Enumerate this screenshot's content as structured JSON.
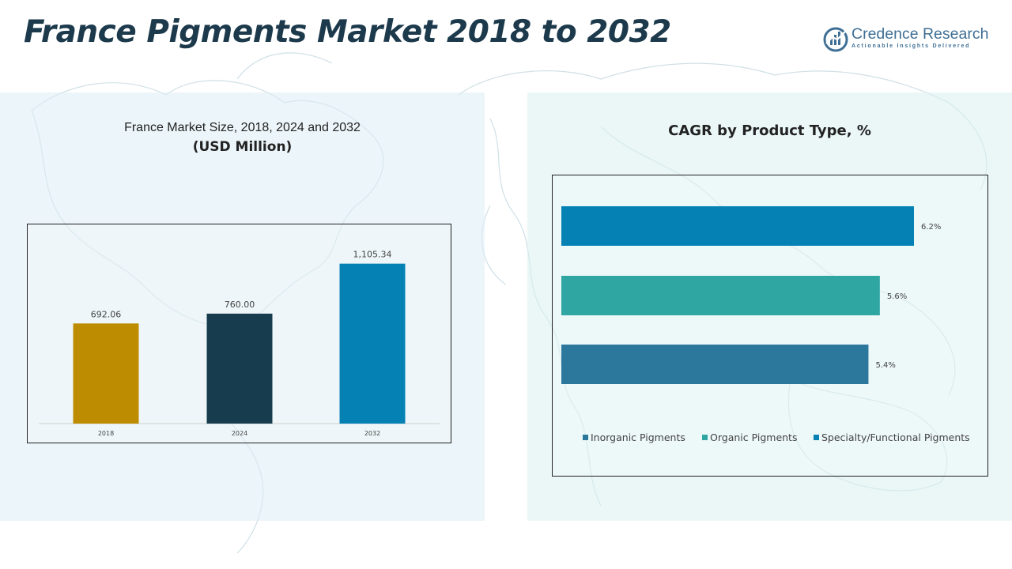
{
  "header": {
    "title": "France Pigments Market 2018 to 2032",
    "logo_name": "Credence Research",
    "logo_tagline": "Actionable Insights Delivered"
  },
  "left_panel": {
    "title": "France Market Size, 2018, 2024 and 2032",
    "unit": "(USD Million)"
  },
  "right_panel": {
    "title": "CAGR by Product Type, %"
  },
  "chart_data": [
    {
      "type": "bar",
      "categories": [
        "2018",
        "2024",
        "2032"
      ],
      "values": [
        692.06,
        760.0,
        1105.34
      ],
      "value_labels": [
        "692.06",
        "760.00",
        "1,105.34"
      ],
      "title": "France Market Size, 2018, 2024 and 2032",
      "ylabel": "(USD Million)",
      "ylim": [
        0,
        1300
      ],
      "grid": false,
      "colors": [
        "#be8c00",
        "#173c4d",
        "#0581b4"
      ]
    },
    {
      "type": "bar",
      "orientation": "horizontal",
      "categories": [
        "Specialty/Functional Pigments",
        "Organic Pigments",
        "Inorganic Pigments"
      ],
      "values": [
        6.2,
        5.6,
        5.4
      ],
      "value_labels": [
        "6.2%",
        "5.6%",
        "5.4%"
      ],
      "title": "CAGR by Product Type, %",
      "legend": [
        "Inorganic Pigments",
        "Organic Pigments",
        "Specialty/Functional Pigments"
      ],
      "legend_colors": [
        "#2c789c",
        "#2fa6a2",
        "#0581b4"
      ],
      "legend_position": "bottom",
      "grid": false,
      "colors": [
        "#0581b4",
        "#2fa6a2",
        "#2c789c"
      ]
    }
  ]
}
